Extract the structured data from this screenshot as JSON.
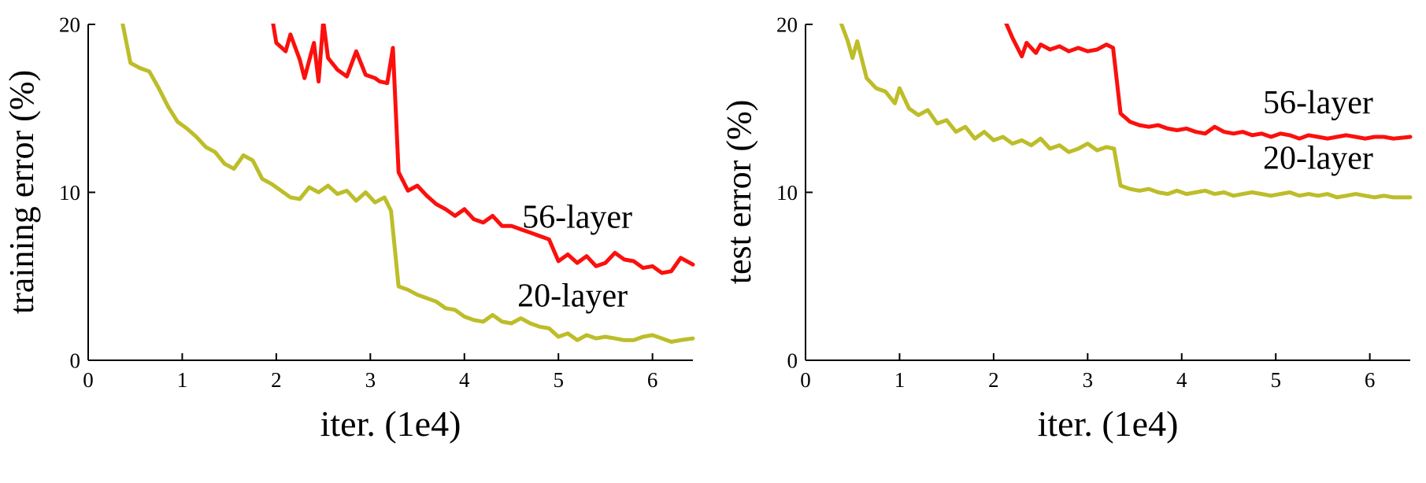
{
  "figure": {
    "description_left_panel": "training error (%) vs iter. (1e4)",
    "description_right_panel": "test error (%) vs iter. (1e4)"
  },
  "chart_data": [
    {
      "type": "line",
      "title": "",
      "xlabel": "iter. (1e4)",
      "ylabel": "training error (%)",
      "xlim": [
        0,
        6.43
      ],
      "ylim": [
        0,
        20
      ],
      "xticks": [
        0,
        1,
        2,
        3,
        4,
        5,
        6
      ],
      "yticks": [
        0,
        10,
        20
      ],
      "grid": false,
      "legend_position": "none",
      "series": [
        {
          "name": "20-layer",
          "color": "#bdbd2a",
          "x": [
            0.35,
            0.45,
            0.55,
            0.65,
            0.75,
            0.85,
            0.95,
            1.05,
            1.15,
            1.25,
            1.35,
            1.45,
            1.55,
            1.65,
            1.75,
            1.85,
            1.95,
            2.05,
            2.15,
            2.25,
            2.35,
            2.45,
            2.55,
            2.65,
            2.75,
            2.85,
            2.95,
            3.05,
            3.15,
            3.22,
            3.3,
            3.4,
            3.5,
            3.6,
            3.7,
            3.8,
            3.9,
            4.0,
            4.1,
            4.2,
            4.3,
            4.4,
            4.5,
            4.6,
            4.7,
            4.8,
            4.9,
            5.0,
            5.1,
            5.2,
            5.3,
            5.4,
            5.5,
            5.6,
            5.7,
            5.8,
            5.9,
            6.0,
            6.1,
            6.2,
            6.3,
            6.43
          ],
          "values": [
            20.5,
            17.7,
            17.4,
            17.2,
            16.2,
            15.1,
            14.2,
            13.8,
            13.3,
            12.7,
            12.4,
            11.7,
            11.4,
            12.2,
            11.9,
            10.8,
            10.5,
            10.1,
            9.7,
            9.6,
            10.3,
            10.0,
            10.4,
            9.9,
            10.1,
            9.5,
            10.0,
            9.4,
            9.7,
            8.9,
            4.4,
            4.2,
            3.9,
            3.7,
            3.5,
            3.1,
            3.0,
            2.6,
            2.4,
            2.3,
            2.7,
            2.3,
            2.2,
            2.5,
            2.2,
            2.0,
            1.9,
            1.4,
            1.6,
            1.2,
            1.5,
            1.3,
            1.4,
            1.3,
            1.2,
            1.2,
            1.4,
            1.5,
            1.3,
            1.1,
            1.2,
            1.3
          ]
        },
        {
          "name": "56-layer",
          "color": "#fb100d",
          "x": [
            1.95,
            2.0,
            2.1,
            2.15,
            2.25,
            2.3,
            2.4,
            2.45,
            2.5,
            2.55,
            2.65,
            2.75,
            2.85,
            2.95,
            3.05,
            3.1,
            3.18,
            3.24,
            3.3,
            3.4,
            3.5,
            3.6,
            3.7,
            3.8,
            3.9,
            4.0,
            4.1,
            4.2,
            4.3,
            4.4,
            4.5,
            4.6,
            4.7,
            4.8,
            4.9,
            5.0,
            5.1,
            5.2,
            5.3,
            5.4,
            5.5,
            5.6,
            5.7,
            5.8,
            5.9,
            6.0,
            6.1,
            6.2,
            6.3,
            6.43
          ],
          "values": [
            20.6,
            18.9,
            18.4,
            19.4,
            17.9,
            16.8,
            18.9,
            16.6,
            20.2,
            18.0,
            17.3,
            16.9,
            18.4,
            17.0,
            16.8,
            16.6,
            16.5,
            18.6,
            11.2,
            10.1,
            10.4,
            9.8,
            9.3,
            9.0,
            8.6,
            9.0,
            8.4,
            8.2,
            8.6,
            8.0,
            8.0,
            7.8,
            7.6,
            7.4,
            7.2,
            5.9,
            6.3,
            5.8,
            6.2,
            5.6,
            5.8,
            6.4,
            6.0,
            5.9,
            5.5,
            5.6,
            5.2,
            5.3,
            6.1,
            5.7
          ]
        }
      ],
      "annotations": [
        {
          "label": "56-layer",
          "x": 5.2,
          "y": 7.9
        },
        {
          "label": "20-layer",
          "x": 5.15,
          "y": 3.2
        }
      ]
    },
    {
      "type": "line",
      "title": "",
      "xlabel": "iter. (1e4)",
      "ylabel": "test error (%)",
      "xlim": [
        0,
        6.43
      ],
      "ylim": [
        0,
        20
      ],
      "xticks": [
        0,
        1,
        2,
        3,
        4,
        5,
        6
      ],
      "yticks": [
        0,
        10,
        20
      ],
      "grid": false,
      "legend_position": "none",
      "series": [
        {
          "name": "20-layer",
          "color": "#bdbd2a",
          "x": [
            0.35,
            0.45,
            0.5,
            0.55,
            0.65,
            0.75,
            0.85,
            0.95,
            1.0,
            1.1,
            1.2,
            1.3,
            1.4,
            1.5,
            1.6,
            1.7,
            1.8,
            1.9,
            2.0,
            2.1,
            2.2,
            2.3,
            2.4,
            2.5,
            2.6,
            2.7,
            2.8,
            2.9,
            3.0,
            3.1,
            3.2,
            3.28,
            3.35,
            3.45,
            3.55,
            3.65,
            3.75,
            3.85,
            3.95,
            4.05,
            4.15,
            4.25,
            4.35,
            4.45,
            4.55,
            4.65,
            4.75,
            4.85,
            4.95,
            5.05,
            5.15,
            5.25,
            5.35,
            5.45,
            5.55,
            5.65,
            5.75,
            5.85,
            5.95,
            6.05,
            6.15,
            6.25,
            6.43
          ],
          "values": [
            20.5,
            19.0,
            18.0,
            19.0,
            16.8,
            16.2,
            16.0,
            15.3,
            16.2,
            15.0,
            14.6,
            14.9,
            14.1,
            14.3,
            13.6,
            13.9,
            13.2,
            13.6,
            13.1,
            13.3,
            12.9,
            13.1,
            12.8,
            13.2,
            12.6,
            12.8,
            12.4,
            12.6,
            12.9,
            12.5,
            12.7,
            12.6,
            10.4,
            10.2,
            10.1,
            10.2,
            10.0,
            9.9,
            10.1,
            9.9,
            10.0,
            10.1,
            9.9,
            10.0,
            9.8,
            9.9,
            10.0,
            9.9,
            9.8,
            9.9,
            10.0,
            9.8,
            9.9,
            9.8,
            9.9,
            9.7,
            9.8,
            9.9,
            9.8,
            9.7,
            9.8,
            9.7,
            9.7
          ]
        },
        {
          "name": "56-layer",
          "color": "#fb100d",
          "x": [
            2.1,
            2.2,
            2.3,
            2.35,
            2.45,
            2.5,
            2.6,
            2.7,
            2.8,
            2.9,
            3.0,
            3.1,
            3.2,
            3.27,
            3.35,
            3.45,
            3.55,
            3.65,
            3.75,
            3.85,
            3.95,
            4.05,
            4.15,
            4.25,
            4.35,
            4.45,
            4.55,
            4.65,
            4.75,
            4.85,
            4.95,
            5.05,
            5.15,
            5.25,
            5.35,
            5.45,
            5.55,
            5.65,
            5.75,
            5.85,
            5.95,
            6.05,
            6.15,
            6.25,
            6.43
          ],
          "values": [
            20.5,
            19.2,
            18.1,
            18.9,
            18.3,
            18.8,
            18.5,
            18.7,
            18.4,
            18.6,
            18.4,
            18.5,
            18.8,
            18.6,
            14.7,
            14.2,
            14.0,
            13.9,
            14.0,
            13.8,
            13.7,
            13.8,
            13.6,
            13.5,
            13.9,
            13.6,
            13.5,
            13.6,
            13.4,
            13.5,
            13.3,
            13.5,
            13.4,
            13.2,
            13.4,
            13.3,
            13.2,
            13.3,
            13.4,
            13.3,
            13.2,
            13.3,
            13.3,
            13.2,
            13.3
          ]
        }
      ],
      "annotations": [
        {
          "label": "56-layer",
          "x": 5.45,
          "y": 14.7
        },
        {
          "label": "20-layer",
          "x": 5.45,
          "y": 11.4
        }
      ]
    }
  ]
}
